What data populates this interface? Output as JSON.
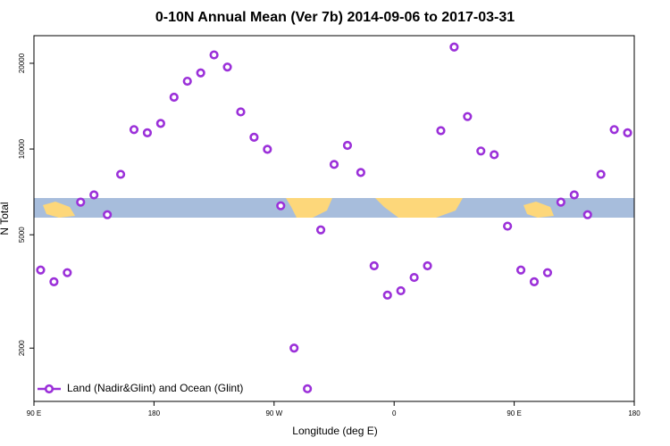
{
  "chart_data": {
    "type": "scatter",
    "title": "0-10N Annual Mean (Ver 7b)   2014-09-06 to 2017-03-31",
    "xlabel": "Longitude (deg E)",
    "ylabel": "N Total",
    "xlim": [
      90,
      540
    ],
    "xticks": [
      {
        "value": 90,
        "label": "90 E"
      },
      {
        "value": 180,
        "label": "180"
      },
      {
        "value": 270,
        "label": "90 W"
      },
      {
        "value": 360,
        "label": "0"
      },
      {
        "value": 450,
        "label": "90 E"
      },
      {
        "value": 540,
        "label": "180"
      }
    ],
    "ylim": [
      1300,
      25000
    ],
    "yticks": [
      2000,
      5000,
      10000,
      20000
    ],
    "log_y": true,
    "legend": "bottom-left",
    "series": [
      {
        "name": "Land (Nadir&Glint) and Ocean (Glint)",
        "color": "#9b30d9",
        "x": [
          95,
          105,
          115,
          125,
          135,
          145,
          155,
          165,
          175,
          185,
          195,
          205,
          215,
          225,
          235,
          245,
          255,
          265,
          275,
          285,
          295,
          305,
          315,
          325,
          335,
          345,
          355,
          365,
          375,
          385,
          395,
          405,
          415,
          425,
          435,
          445,
          455,
          465,
          475,
          485,
          495,
          505,
          515,
          525,
          535
        ],
        "values": [
          3760,
          3420,
          3680,
          6510,
          6900,
          5880,
          8150,
          11700,
          11400,
          12300,
          15200,
          17300,
          18500,
          21400,
          19400,
          13500,
          11000,
          9980,
          6320,
          2000,
          1440,
          5200,
          8830,
          10300,
          8270,
          3890,
          3070,
          3180,
          3540,
          3890,
          11600,
          22800,
          13000,
          9840,
          9550,
          5360,
          3760,
          3420,
          3680,
          6510,
          6900,
          5880,
          8150,
          11700,
          11400
        ]
      }
    ]
  }
}
